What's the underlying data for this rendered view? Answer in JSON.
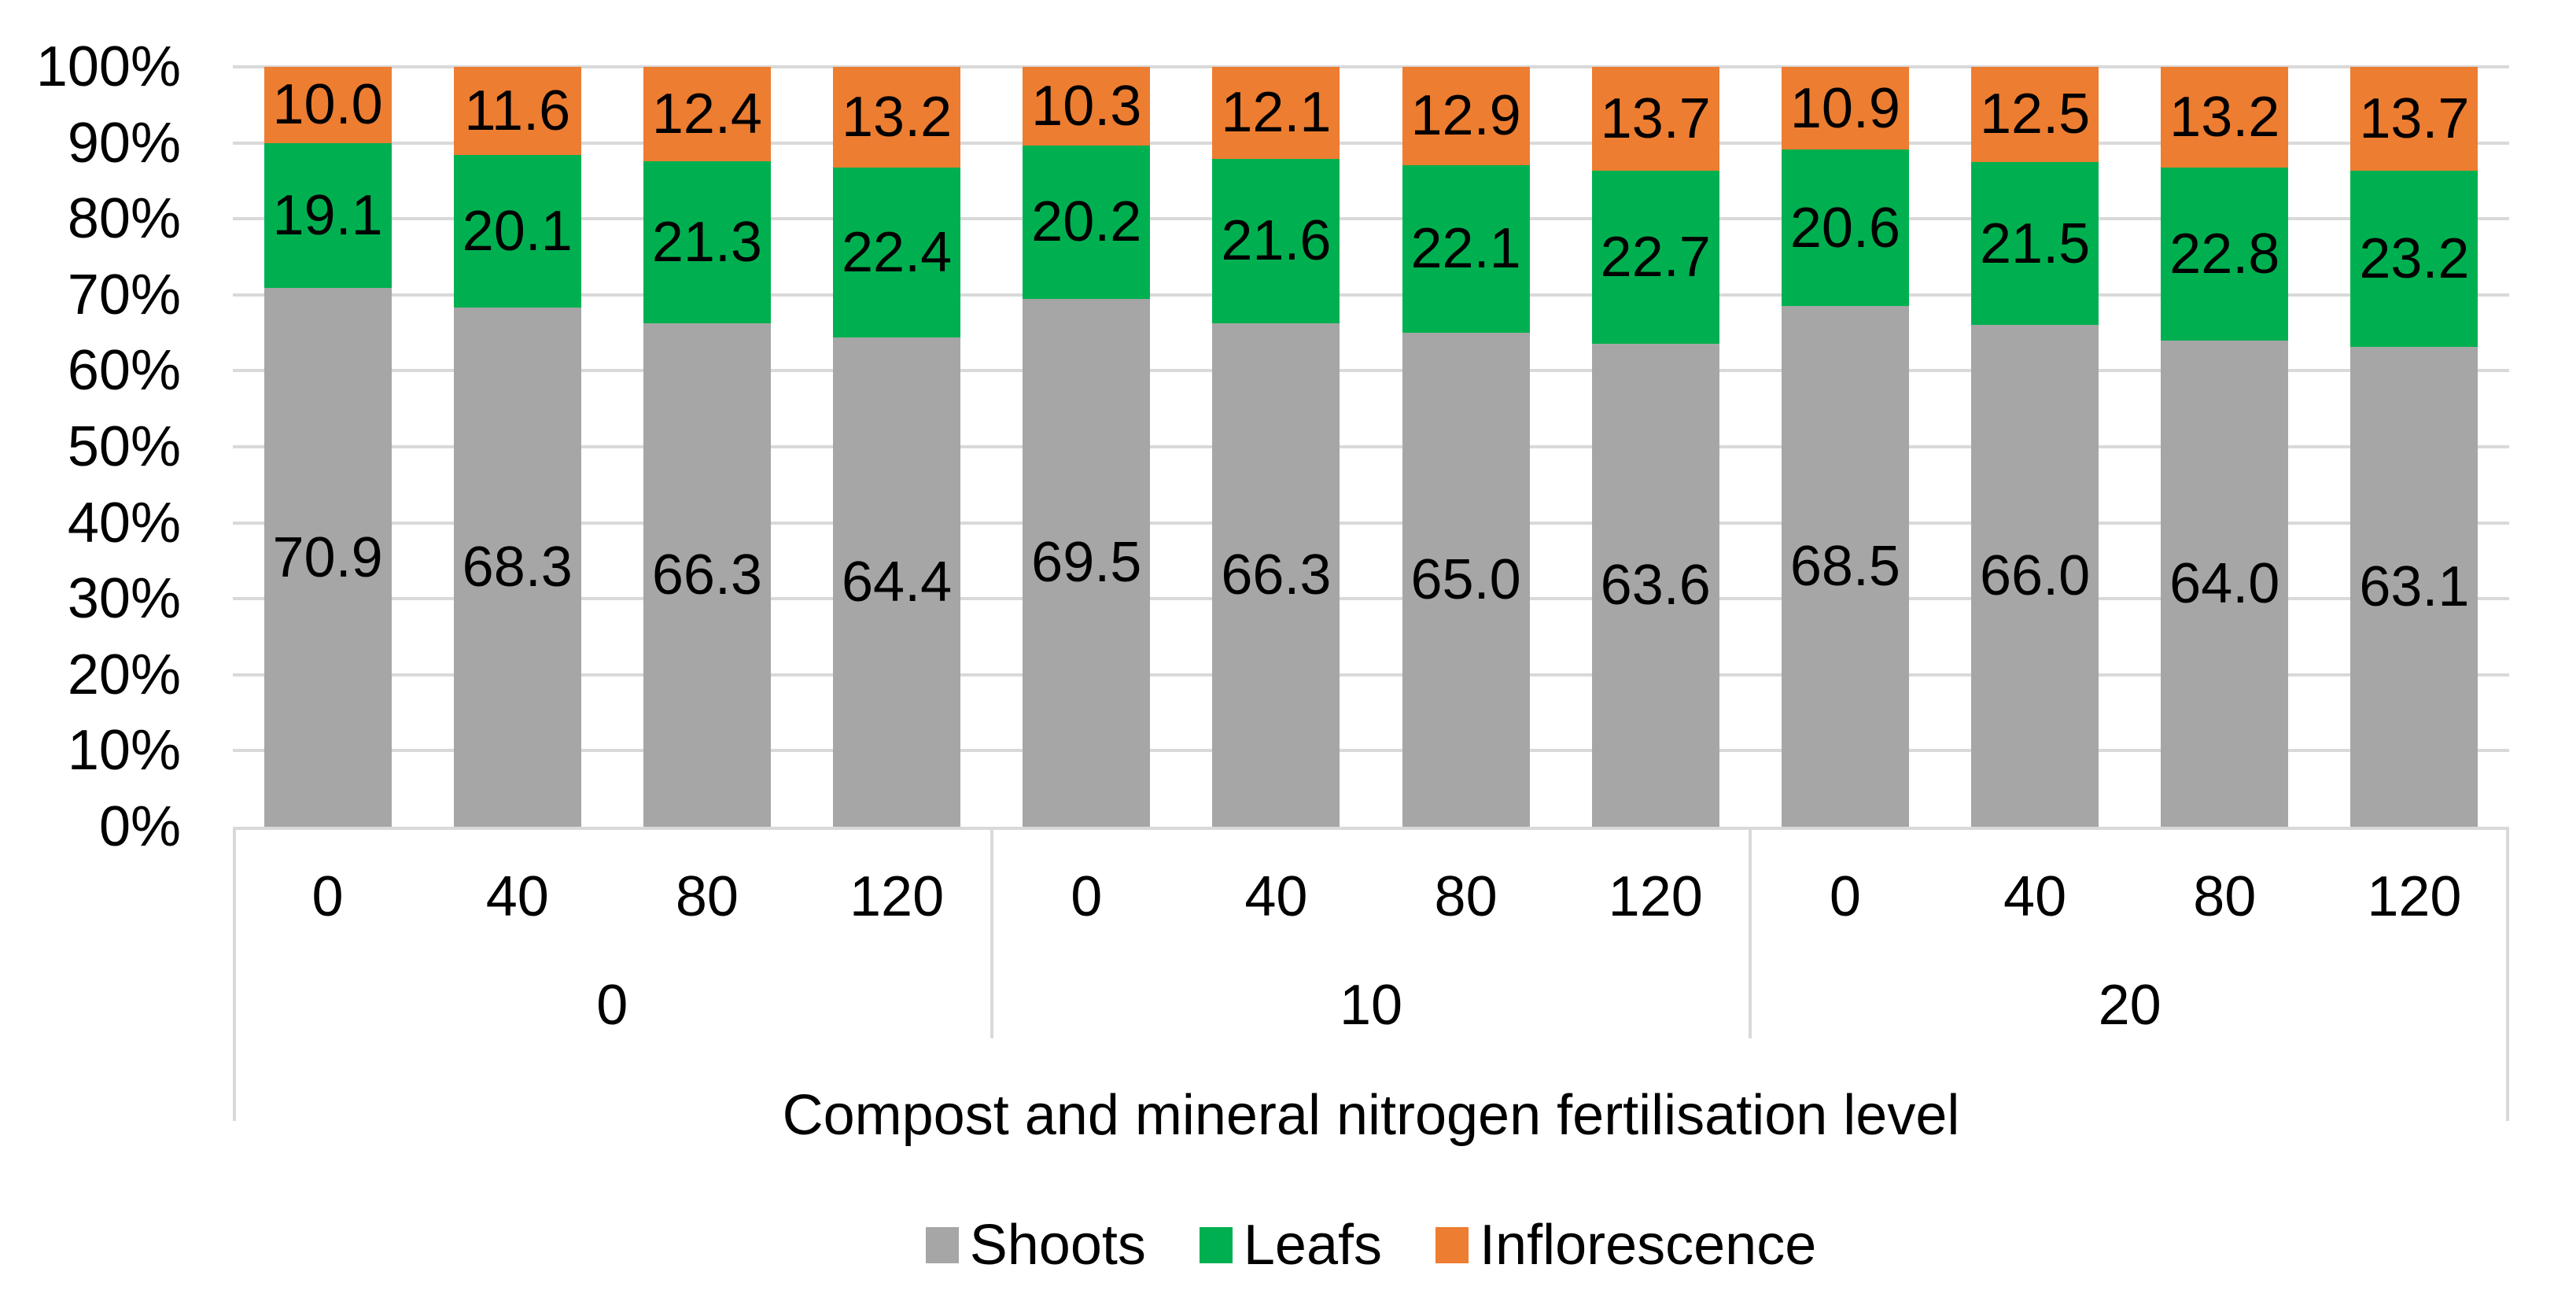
{
  "chart_data": {
    "type": "bar",
    "stacking": "percent",
    "orientation": "vertical",
    "title": "",
    "xlabel": "Compost and mineral nitrogen fertilisation level",
    "ylabel": "",
    "background": "#FFFFFF",
    "grid": true,
    "grid_color": "#D9D9D9",
    "text_color": "#000000",
    "y_axis": {
      "min": 0,
      "max": 100,
      "step": 10,
      "tick_labels": [
        "0%",
        "10%",
        "20%",
        "30%",
        "40%",
        "50%",
        "60%",
        "70%",
        "80%",
        "90%",
        "100%"
      ]
    },
    "x_axis": {
      "level1_categories": [
        "0",
        "40",
        "80",
        "120",
        "0",
        "40",
        "80",
        "120",
        "0",
        "40",
        "80",
        "120"
      ],
      "level2_group_labels": [
        "0",
        "10",
        "20"
      ],
      "bars_per_group": 4
    },
    "series": [
      {
        "name": "Shoots",
        "color": "#A6A6A6",
        "values": [
          70.9,
          68.3,
          66.3,
          64.4,
          69.5,
          66.3,
          65.0,
          63.6,
          68.5,
          66.0,
          64.0,
          63.1
        ]
      },
      {
        "name": "Leafs",
        "color": "#00B050",
        "values": [
          19.1,
          20.1,
          21.3,
          22.4,
          20.2,
          21.6,
          22.1,
          22.7,
          20.6,
          21.5,
          22.8,
          23.2
        ]
      },
      {
        "name": "Inflorescence",
        "color": "#ED7D31",
        "values": [
          10.0,
          11.6,
          12.4,
          13.2,
          10.3,
          12.1,
          12.9,
          13.7,
          10.9,
          12.5,
          13.2,
          13.7
        ]
      }
    ],
    "data_labels": {
      "show": true,
      "decimals": 1,
      "position": "center"
    },
    "legend_position": "bottom"
  }
}
